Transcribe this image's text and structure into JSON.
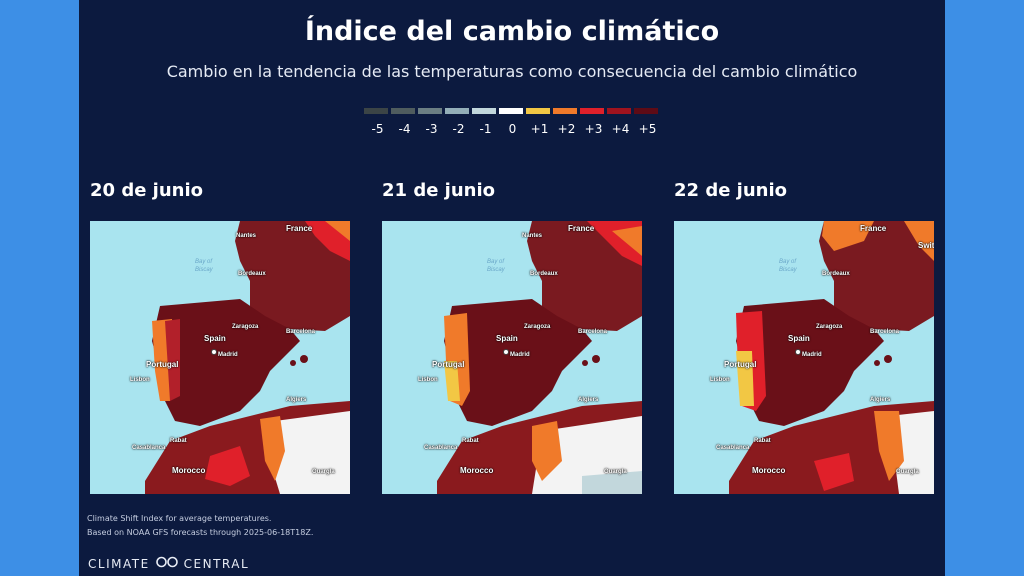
{
  "header": {
    "title": "Índice del cambio climático",
    "subtitle": "Cambio en la tendencia de las temperaturas como consecuencia del cambio climático"
  },
  "legend": {
    "labels": [
      "-5",
      "-4",
      "-3",
      "-2",
      "-1",
      "0",
      "+1",
      "+2",
      "+3",
      "+4",
      "+5"
    ],
    "colors": [
      "#3b4446",
      "#4f5c5e",
      "#6b7e83",
      "#93aeb8",
      "#c2d7dc",
      "#ffffff",
      "#f2c744",
      "#f07a2a",
      "#e0202a",
      "#a0131e",
      "#5e0b16"
    ]
  },
  "maps": [
    {
      "date": "20 de junio"
    },
    {
      "date": "21 de junio"
    },
    {
      "date": "22 de junio"
    }
  ],
  "map_labels": {
    "france": "France",
    "nantes": "Nantes",
    "bay": "Bay of",
    "biscay": "Biscay",
    "bordeaux": "Bordeaux",
    "zaragoza": "Zaragoza",
    "barcelona": "Barcelona",
    "spain": "Spain",
    "madrid": "Madrid",
    "portugal": "Portugal",
    "lisbon": "Lisbon",
    "algiers": "Algiers",
    "rabat": "Rabat",
    "casablanca": "Casablanca",
    "morocco": "Morocco",
    "ouargla": "Ouargla",
    "switz": "Switz"
  },
  "footer": {
    "line1": "Climate Shift Index for average temperatures.",
    "line2": "Based on NOAA GFS forecasts through 2025-06-18T18Z.",
    "logo_left": "CLIMATE",
    "logo_right": "CENTRAL"
  }
}
